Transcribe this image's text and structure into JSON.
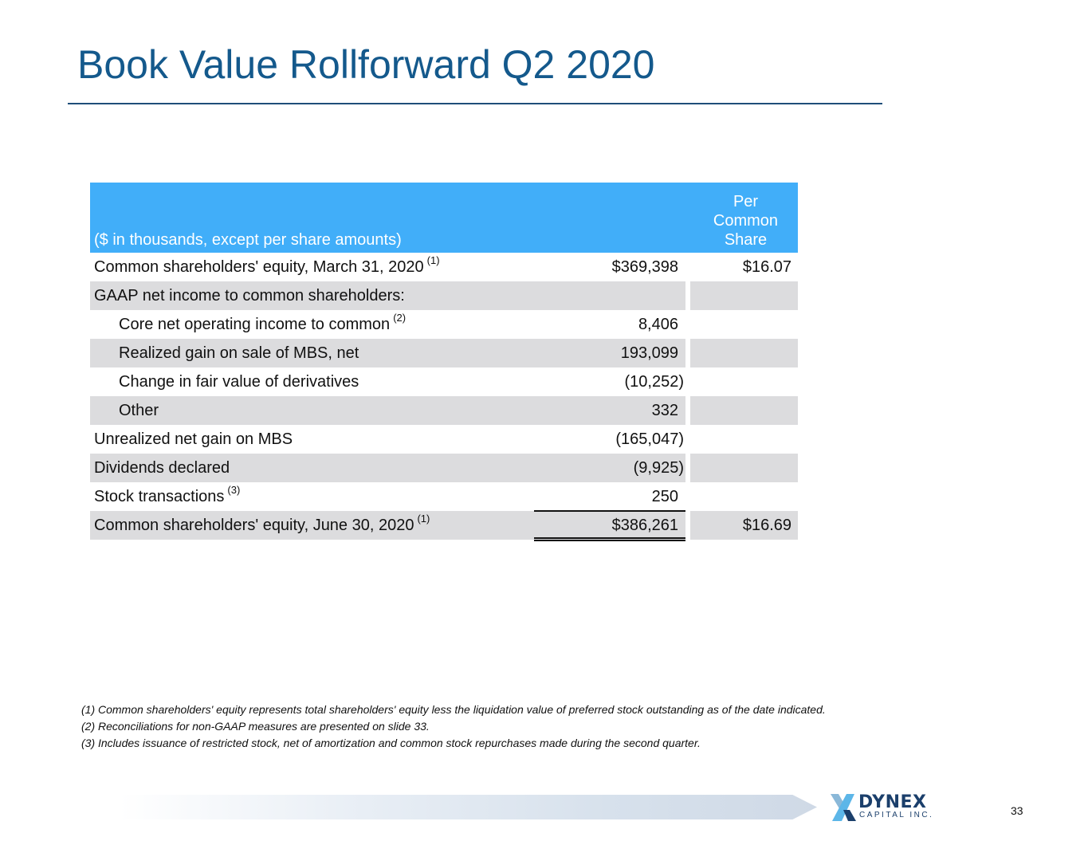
{
  "title": "Book Value Rollforward Q2 2020",
  "table": {
    "header": {
      "label": "($ in thousands, except per share amounts)",
      "col2_line1": "Per",
      "col2_line2": "Common",
      "col2_line3": "Share"
    },
    "rows": [
      {
        "label": "Common shareholders' equity, March 31, 2020",
        "note": "(1)",
        "value": "$369,398",
        "per_share": "$16.07"
      },
      {
        "label": "GAAP net income to common shareholders:",
        "value": "",
        "per_share": ""
      },
      {
        "label": "Core net operating income to common",
        "note": "(2)",
        "value": "8,406",
        "per_share": ""
      },
      {
        "label": "Realized gain on sale of MBS, net",
        "value": "193,099",
        "per_share": ""
      },
      {
        "label": "Change in fair value of derivatives",
        "value": "(10,252)",
        "per_share": ""
      },
      {
        "label": "Other",
        "value": "332",
        "per_share": ""
      },
      {
        "label": "Unrealized net gain on MBS",
        "value": "(165,047)",
        "per_share": ""
      },
      {
        "label": "Dividends declared",
        "value": "(9,925)",
        "per_share": ""
      },
      {
        "label": "Stock transactions",
        "note": "(3)",
        "value": "250",
        "per_share": ""
      },
      {
        "label": "Common shareholders' equity, June 30, 2020",
        "note": "(1)",
        "value": "$386,261",
        "per_share": "$16.69"
      }
    ]
  },
  "footnotes": [
    "(1)  Common shareholders' equity represents total shareholders' equity less the liquidation value of preferred stock outstanding as of the date indicated.",
    "(2)  Reconciliations for non-GAAP measures are presented on slide 33.",
    "(3)  Includes issuance of restricted stock, net of amortization and common stock repurchases made during the second quarter."
  ],
  "logo": {
    "name": "DYNEX",
    "sub": "CAPITAL INC.",
    "icon": "dynex-x-logo-icon"
  },
  "page_number": "33",
  "colors": {
    "title": "#14598c",
    "header_bg": "#41aef9",
    "shade": "#dcdcde",
    "logo_navy": "#1b3f6b",
    "logo_light": "#5cb6e8"
  }
}
